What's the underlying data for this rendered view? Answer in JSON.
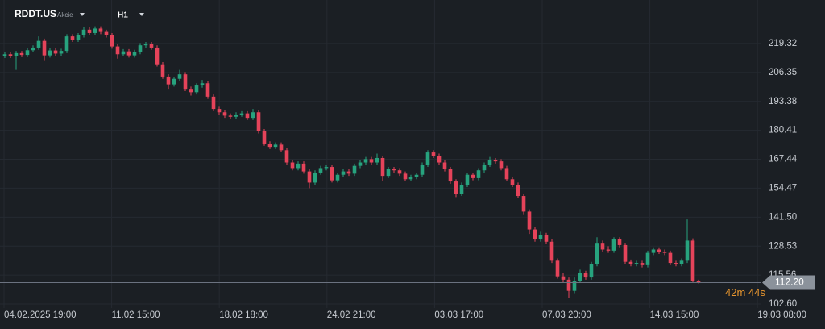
{
  "header": {
    "symbol": "RDDT.US",
    "asset_type": "Akcie",
    "timeframe": "H1"
  },
  "chart_data": {
    "type": "candlestick",
    "ylim": [
      100.8,
      238.8
    ],
    "yticks": [
      219.32,
      206.35,
      193.38,
      180.41,
      167.44,
      154.47,
      {
        "value": 141.5,
        "label": "141.50"
      },
      128.53,
      115.56,
      {
        "value": 102.6,
        "label": "102.60"
      }
    ],
    "x_axis_labels": [
      "04.02.2025 19:00",
      "11.02 15:00",
      "18.02 18:00",
      "24.02 21:00",
      "03.03 17:00",
      "07.03 20:00",
      "14.03 15:00",
      "19.03 08:00"
    ],
    "up_color": "#27a37e",
    "down_color": "#e5435a",
    "grid": true,
    "current_price": {
      "value": 112.2,
      "label": "112.20"
    },
    "countdown": "42m 44s",
    "open": [
      213.8,
      214.5,
      213.8,
      215.0,
      214.2,
      216.3,
      217.5,
      220.5,
      214.0,
      216.2,
      214.8,
      216.0,
      222.5,
      221.0,
      223.0,
      225.5,
      224.0,
      226.0,
      224.5,
      223.0,
      218.0,
      214.5,
      215.8,
      214.0,
      215.5,
      218.5,
      219.0,
      217.5,
      210.0,
      204.5,
      201.0,
      203.5,
      205.5,
      199.0,
      197.5,
      200.5,
      201.5,
      195.5,
      190.0,
      188.5,
      187.0,
      186.5,
      187.5,
      188.0,
      186.0,
      188.5,
      180.0,
      174.5,
      173.0,
      174.0,
      171.5,
      166.0,
      163.5,
      165.5,
      162.0,
      157.0,
      161.5,
      163.5,
      164.0,
      158.0,
      160.5,
      162.0,
      161.0,
      164.5,
      166.0,
      167.5,
      166.0,
      168.0,
      160.0,
      163.0,
      162.5,
      161.0,
      158.5,
      159.5,
      160.5,
      165.0,
      170.5,
      169.0,
      166.0,
      163.0,
      157.5,
      152.0,
      156.0,
      160.5,
      159.0,
      162.5,
      165.0,
      167.0,
      166.5,
      163.5,
      158.5,
      156.0,
      151.0,
      144.0,
      136.0,
      131.5,
      133.5,
      130.5,
      122.0,
      115.0,
      113.5,
      108.5,
      113.0,
      116.5,
      114.5,
      120.5,
      130.0,
      127.0,
      126.5,
      131.5,
      129.0,
      121.5,
      120.5,
      121.0,
      120.0,
      125.5,
      127.0,
      126.0,
      125.5,
      121.0,
      120.5,
      122.0,
      131.0,
      113.0
    ],
    "high": [
      215.5,
      215.5,
      216.0,
      216.0,
      217.3,
      218.5,
      222.5,
      221.5,
      217.2,
      217.2,
      217.0,
      223.5,
      223.5,
      224.0,
      226.5,
      226.5,
      227.0,
      227.0,
      225.5,
      224.0,
      219.0,
      216.8,
      216.8,
      216.5,
      219.5,
      220.0,
      220.0,
      218.5,
      211.0,
      205.5,
      204.5,
      207.5,
      206.5,
      200.0,
      201.5,
      203.0,
      202.5,
      196.5,
      191.0,
      189.5,
      188.0,
      188.5,
      189.0,
      189.0,
      190.0,
      189.5,
      181.0,
      175.5,
      175.0,
      175.0,
      172.5,
      167.0,
      166.5,
      166.5,
      163.0,
      162.5,
      164.5,
      165.0,
      165.0,
      161.5,
      163.0,
      163.0,
      165.5,
      167.0,
      168.5,
      168.5,
      170.0,
      169.0,
      164.0,
      164.0,
      163.5,
      162.0,
      160.5,
      161.5,
      166.0,
      171.5,
      171.5,
      170.0,
      167.0,
      164.0,
      158.5,
      157.0,
      161.5,
      161.5,
      163.5,
      166.0,
      168.5,
      168.0,
      167.5,
      164.5,
      159.5,
      157.0,
      152.0,
      145.0,
      137.0,
      135.0,
      134.5,
      131.5,
      123.0,
      116.5,
      114.5,
      114.5,
      118.0,
      117.5,
      121.5,
      132.5,
      131.0,
      128.5,
      132.5,
      132.5,
      130.0,
      122.5,
      122.0,
      122.0,
      126.5,
      128.0,
      128.0,
      127.0,
      126.5,
      122.0,
      123.0,
      140.5,
      132.0,
      113.5
    ],
    "low": [
      212.8,
      212.8,
      207.5,
      213.2,
      213.2,
      215.3,
      216.5,
      211.5,
      213.0,
      213.8,
      213.8,
      215.0,
      220.0,
      220.0,
      222.0,
      223.0,
      223.0,
      223.5,
      222.0,
      217.0,
      212.5,
      213.5,
      213.0,
      213.0,
      214.5,
      217.5,
      216.5,
      209.0,
      203.5,
      199.0,
      200.0,
      202.5,
      198.0,
      196.0,
      196.5,
      199.5,
      194.5,
      189.0,
      187.5,
      186.0,
      185.5,
      185.5,
      186.5,
      185.0,
      185.0,
      179.0,
      173.5,
      172.0,
      172.0,
      170.5,
      165.0,
      162.5,
      162.5,
      161.0,
      154.5,
      156.0,
      160.5,
      162.5,
      157.0,
      157.0,
      159.5,
      160.0,
      160.0,
      163.5,
      165.0,
      165.0,
      165.0,
      157.5,
      159.0,
      161.5,
      160.0,
      157.5,
      157.5,
      158.5,
      159.5,
      164.0,
      168.0,
      165.0,
      162.0,
      156.5,
      150.5,
      151.0,
      155.0,
      158.0,
      158.0,
      161.5,
      164.0,
      165.5,
      162.5,
      157.5,
      155.0,
      150.0,
      142.5,
      134.0,
      130.5,
      130.5,
      129.5,
      121.0,
      114.0,
      112.0,
      105.5,
      107.5,
      112.0,
      113.5,
      113.5,
      119.5,
      126.0,
      125.5,
      125.5,
      128.0,
      120.5,
      119.5,
      119.5,
      119.0,
      119.0,
      124.5,
      125.0,
      124.5,
      120.0,
      119.5,
      119.5,
      121.0,
      112.0,
      111.8
    ],
    "close": [
      214.5,
      213.8,
      215.0,
      214.2,
      216.3,
      217.5,
      220.5,
      214.0,
      216.2,
      214.8,
      216.0,
      222.5,
      221.0,
      223.0,
      225.5,
      224.0,
      226.0,
      224.5,
      223.0,
      218.0,
      214.5,
      215.8,
      214.0,
      215.5,
      218.5,
      219.0,
      217.5,
      210.0,
      204.5,
      201.0,
      203.5,
      205.5,
      199.0,
      197.5,
      200.5,
      201.5,
      195.5,
      190.0,
      188.5,
      187.0,
      186.5,
      187.5,
      188.0,
      186.0,
      188.5,
      180.0,
      174.5,
      173.0,
      174.0,
      171.5,
      166.0,
      163.5,
      165.5,
      162.0,
      157.0,
      161.5,
      163.5,
      164.0,
      158.0,
      160.5,
      162.0,
      161.0,
      164.5,
      166.0,
      167.5,
      166.0,
      168.0,
      160.0,
      163.0,
      162.5,
      161.0,
      158.5,
      159.5,
      160.5,
      165.0,
      170.5,
      169.0,
      166.0,
      163.0,
      157.5,
      152.0,
      156.0,
      160.5,
      159.0,
      162.5,
      165.0,
      167.0,
      166.5,
      163.5,
      158.5,
      156.0,
      151.0,
      144.0,
      136.0,
      131.5,
      133.5,
      130.5,
      122.0,
      115.0,
      113.5,
      108.5,
      113.0,
      116.5,
      114.5,
      120.5,
      130.0,
      127.0,
      126.5,
      131.5,
      129.0,
      121.5,
      120.5,
      121.0,
      120.0,
      125.5,
      127.0,
      126.0,
      125.5,
      121.0,
      120.5,
      122.0,
      131.0,
      113.0,
      112.2
    ]
  }
}
